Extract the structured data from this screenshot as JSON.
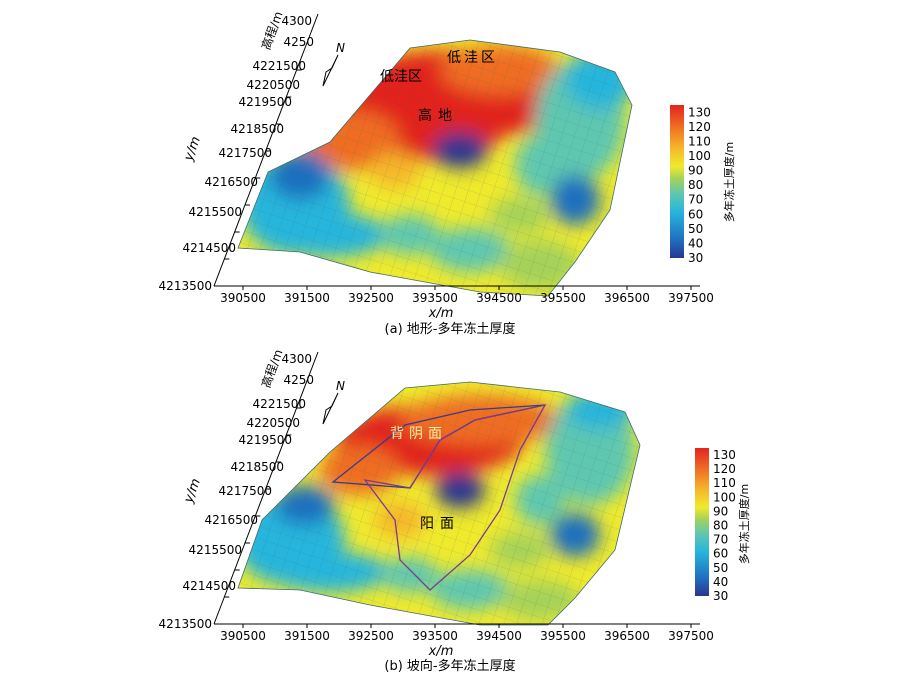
{
  "chart_data": [
    {
      "type": "heatmap",
      "panel": "a",
      "caption": "(a) 地形-多年冻土厚度",
      "xlabel": "x/m",
      "ylabel": "y/m",
      "zlabel": "高程/m",
      "x_ticks": [
        "390500",
        "391500",
        "392500",
        "393500",
        "394500",
        "395500",
        "396500",
        "397500"
      ],
      "y_ticks": [
        "4213500",
        "4214500",
        "4215500",
        "4216500",
        "4217500",
        "4218500",
        "4219500",
        "4220500",
        "4221500"
      ],
      "z_ticks": [
        "4300",
        "4250"
      ],
      "north_label": "N",
      "colorbar": {
        "label": "多年冻土厚度/m",
        "ticks": [
          "130",
          "120",
          "110",
          "100",
          "90",
          "80",
          "70",
          "60",
          "50",
          "40",
          "30"
        ],
        "range": [
          30,
          135
        ]
      },
      "annotations": [
        "低洼区",
        "低洼区",
        "高地"
      ]
    },
    {
      "type": "heatmap",
      "panel": "b",
      "caption": "(b) 坡向-多年冻土厚度",
      "xlabel": "x/m",
      "ylabel": "y/m",
      "zlabel": "高程/m",
      "x_ticks": [
        "390500",
        "391500",
        "392500",
        "393500",
        "394500",
        "395500",
        "396500",
        "397500"
      ],
      "y_ticks": [
        "4213500",
        "4214500",
        "4215500",
        "4216500",
        "4217500",
        "4218500",
        "4219500",
        "4220500",
        "4221500"
      ],
      "z_ticks": [
        "4300",
        "4250"
      ],
      "north_label": "N",
      "colorbar": {
        "label": "多年冻土厚度/m",
        "ticks": [
          "130",
          "120",
          "110",
          "100",
          "90",
          "80",
          "70",
          "60",
          "50",
          "40",
          "30"
        ],
        "range": [
          30,
          135
        ]
      },
      "annotations": [
        "背阴面",
        "阳面"
      ]
    }
  ],
  "colors": {
    "ramp": [
      "#2b3590",
      "#1f6fc0",
      "#27b5dc",
      "#5fc7b0",
      "#a5d25a",
      "#f0ea2c",
      "#f6b62a",
      "#ef6d23",
      "#e3241f"
    ]
  }
}
